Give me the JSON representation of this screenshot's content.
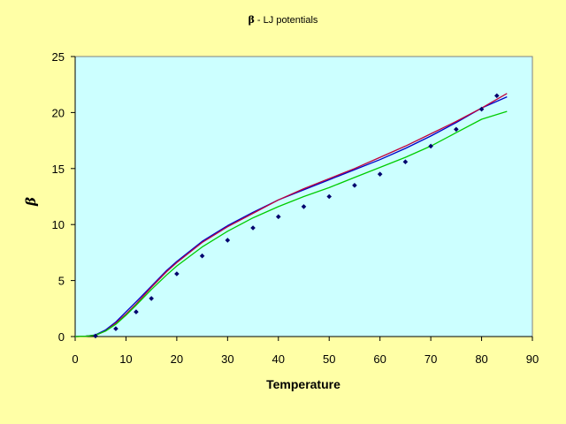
{
  "chart_data": {
    "type": "line",
    "title_symbol": "β",
    "title": " - LJ potentials",
    "xlabel": "Temperature",
    "ylabel": "β",
    "xlim": [
      0,
      90
    ],
    "ylim": [
      0,
      25
    ],
    "x_ticks": [
      0,
      10,
      20,
      30,
      40,
      50,
      60,
      70,
      80,
      90
    ],
    "y_ticks": [
      0,
      5,
      10,
      15,
      20,
      25
    ],
    "grid": false,
    "legend": "none",
    "colors": {
      "background": "#ffffa6",
      "plot_area": "#ccffff",
      "series_blue": "#0000c8",
      "series_red": "#c0003c",
      "series_green": "#00cc00",
      "markers": "#00006e"
    },
    "series": [
      {
        "style": "line",
        "color": "blue",
        "x": [
          0,
          2,
          4,
          6,
          8,
          10,
          12,
          15,
          18,
          20,
          25,
          30,
          35,
          40,
          45,
          50,
          55,
          60,
          65,
          70,
          75,
          80,
          85
        ],
        "y": [
          0,
          0.02,
          0.15,
          0.6,
          1.3,
          2.2,
          3.1,
          4.5,
          5.9,
          6.7,
          8.5,
          9.9,
          11.1,
          12.2,
          13.1,
          14.0,
          14.9,
          15.8,
          16.8,
          17.9,
          19.1,
          20.4,
          21.4
        ]
      },
      {
        "style": "line",
        "color": "red",
        "x": [
          0,
          2,
          4,
          6,
          8,
          10,
          12,
          15,
          18,
          20,
          25,
          30,
          35,
          40,
          45,
          50,
          55,
          60,
          65,
          70,
          75,
          80,
          85
        ],
        "y": [
          0,
          0.02,
          0.12,
          0.5,
          1.2,
          2.0,
          2.9,
          4.4,
          5.8,
          6.6,
          8.4,
          9.8,
          11.0,
          12.2,
          13.2,
          14.1,
          15.0,
          16.0,
          17.0,
          18.1,
          19.2,
          20.4,
          21.7
        ]
      },
      {
        "style": "line",
        "color": "green",
        "x": [
          0,
          2,
          4,
          6,
          8,
          10,
          12,
          15,
          18,
          20,
          25,
          30,
          35,
          40,
          45,
          50,
          55,
          60,
          65,
          70,
          75,
          80,
          85
        ],
        "y": [
          0,
          0.02,
          0.12,
          0.5,
          1.1,
          1.9,
          2.8,
          4.2,
          5.5,
          6.3,
          8.0,
          9.4,
          10.6,
          11.6,
          12.5,
          13.3,
          14.2,
          15.1,
          16.0,
          17.0,
          18.2,
          19.4,
          20.1
        ]
      },
      {
        "style": "marker",
        "color": "navy",
        "x": [
          4,
          8,
          12,
          15,
          20,
          25,
          30,
          35,
          40,
          45,
          50,
          55,
          60,
          65,
          70,
          75,
          80,
          83
        ],
        "y": [
          0.05,
          0.7,
          2.2,
          3.4,
          5.6,
          7.2,
          8.6,
          9.7,
          10.7,
          11.6,
          12.5,
          13.5,
          14.5,
          15.6,
          17.0,
          18.5,
          20.3,
          21.5
        ]
      }
    ]
  }
}
